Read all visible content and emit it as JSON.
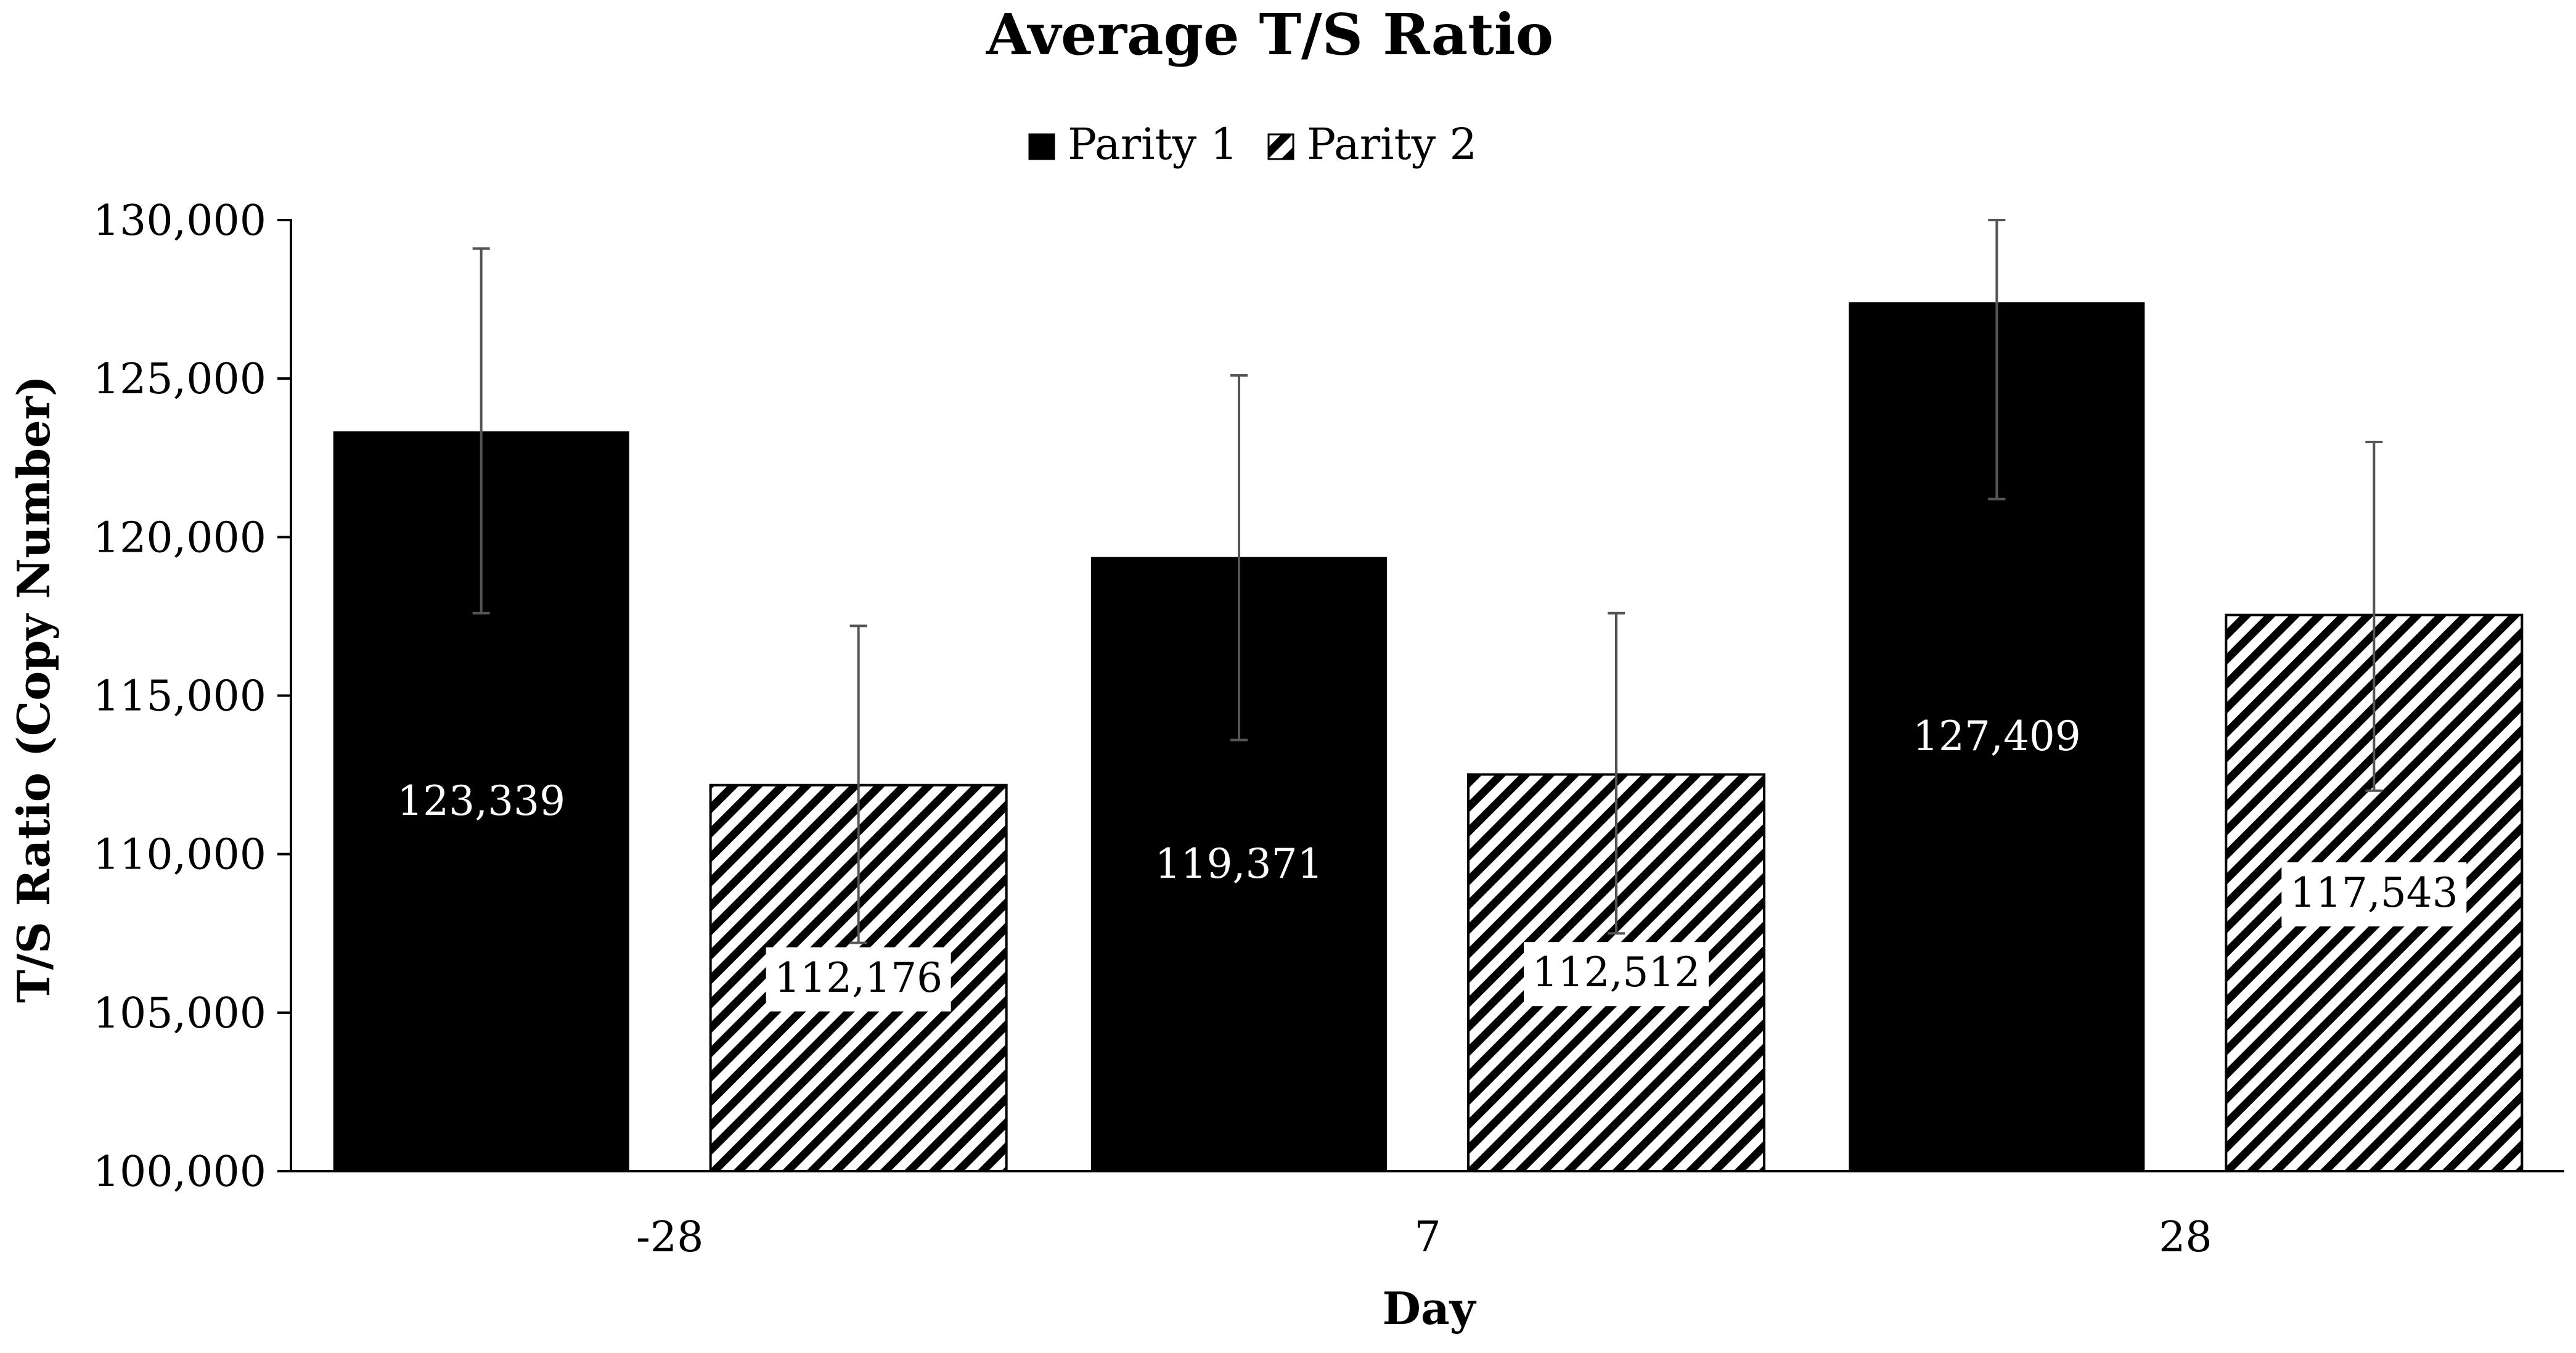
{
  "chart_data": {
    "type": "bar",
    "title": "Average T/S Ratio",
    "xlabel": "Day",
    "ylabel": "T/S Ratio (Copy Number)",
    "categories": [
      "-28",
      "7",
      "28"
    ],
    "series": [
      {
        "name": "Parity 1",
        "fill": "solid",
        "values": [
          123339,
          119371,
          127409
        ],
        "value_labels": [
          "123,339",
          "119,371",
          "127,409"
        ],
        "error_low": [
          117600,
          113600,
          121200
        ],
        "error_high": [
          129100,
          125100,
          130000
        ]
      },
      {
        "name": "Parity 2",
        "fill": "hatch",
        "values": [
          112176,
          112512,
          117543
        ],
        "value_labels": [
          "112,176",
          "112,512",
          "117,543"
        ],
        "error_low": [
          107200,
          107500,
          112000
        ],
        "error_high": [
          117200,
          117600,
          123000
        ]
      }
    ],
    "ylim": [
      100000,
      130000
    ],
    "yticks": [
      100000,
      105000,
      110000,
      115000,
      120000,
      125000,
      130000
    ],
    "ytick_labels": [
      "100,000",
      "105,000",
      "110,000",
      "115,000",
      "120,000",
      "125,000",
      "130,000"
    ],
    "grid": false,
    "legend_position": "top-center",
    "colors": {
      "bar": "#000000",
      "axis": "#000000",
      "error_bar": "#555555",
      "label_bg": "#ffffff"
    }
  }
}
